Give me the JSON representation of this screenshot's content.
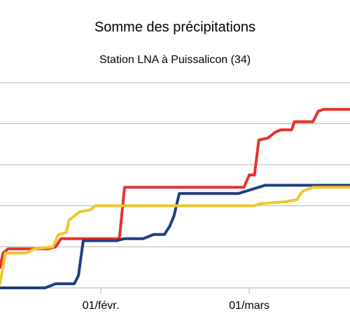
{
  "chart_data": {
    "type": "line",
    "title": "Somme des précipitations",
    "subtitle": "Station LNA à Puissalicon (34)",
    "xlabel": "",
    "ylabel": "",
    "x_tick_labels": [
      {
        "label": "01/févr.",
        "day": 31
      },
      {
        "label": "01/mars",
        "day": 59
      }
    ],
    "xlim": [
      12,
      78
    ],
    "ylim": [
      0,
      5
    ],
    "grid": true,
    "legend": "none",
    "series": [
      {
        "color": "#e8302b",
        "points": [
          [
            12,
            0.5
          ],
          [
            12.6,
            0.85
          ],
          [
            13.5,
            0.95
          ],
          [
            21,
            0.95
          ],
          [
            22.5,
            1.0
          ],
          [
            23.5,
            1.2
          ],
          [
            34.5,
            1.2
          ],
          [
            35.5,
            2.45
          ],
          [
            58,
            2.45
          ],
          [
            59,
            2.75
          ],
          [
            60,
            2.75
          ],
          [
            60.8,
            3.6
          ],
          [
            62.5,
            3.65
          ],
          [
            64,
            3.8
          ],
          [
            65,
            3.85
          ],
          [
            67,
            3.85
          ],
          [
            67.5,
            4.05
          ],
          [
            71,
            4.05
          ],
          [
            72,
            4.3
          ],
          [
            73,
            4.35
          ],
          [
            78,
            4.35
          ]
        ]
      },
      {
        "color": "#1e3f7f",
        "points": [
          [
            12,
            0
          ],
          [
            20.5,
            0
          ],
          [
            22.5,
            0.1
          ],
          [
            26,
            0.1
          ],
          [
            26.8,
            0.3
          ],
          [
            27.7,
            1.15
          ],
          [
            34,
            1.15
          ],
          [
            35.5,
            1.2
          ],
          [
            39,
            1.2
          ],
          [
            41,
            1.3
          ],
          [
            43,
            1.3
          ],
          [
            44,
            1.5
          ],
          [
            44.8,
            1.75
          ],
          [
            45.8,
            2.3
          ],
          [
            48,
            2.3
          ],
          [
            56,
            2.3
          ],
          [
            57,
            2.3
          ],
          [
            62,
            2.5
          ],
          [
            78,
            2.5
          ]
        ]
      },
      {
        "color": "#f2c62b",
        "points": [
          [
            12,
            0.1
          ],
          [
            13,
            0.85
          ],
          [
            17,
            0.85
          ],
          [
            18.5,
            0.95
          ],
          [
            22,
            1.0
          ],
          [
            23,
            1.3
          ],
          [
            24.5,
            1.35
          ],
          [
            25,
            1.65
          ],
          [
            27,
            1.85
          ],
          [
            29,
            1.9
          ],
          [
            30,
            2.0
          ],
          [
            46,
            2.0
          ],
          [
            60,
            2.0
          ],
          [
            61,
            2.05
          ],
          [
            66,
            2.1
          ],
          [
            68,
            2.15
          ],
          [
            69,
            2.35
          ],
          [
            71,
            2.45
          ],
          [
            78,
            2.45
          ]
        ]
      }
    ]
  }
}
